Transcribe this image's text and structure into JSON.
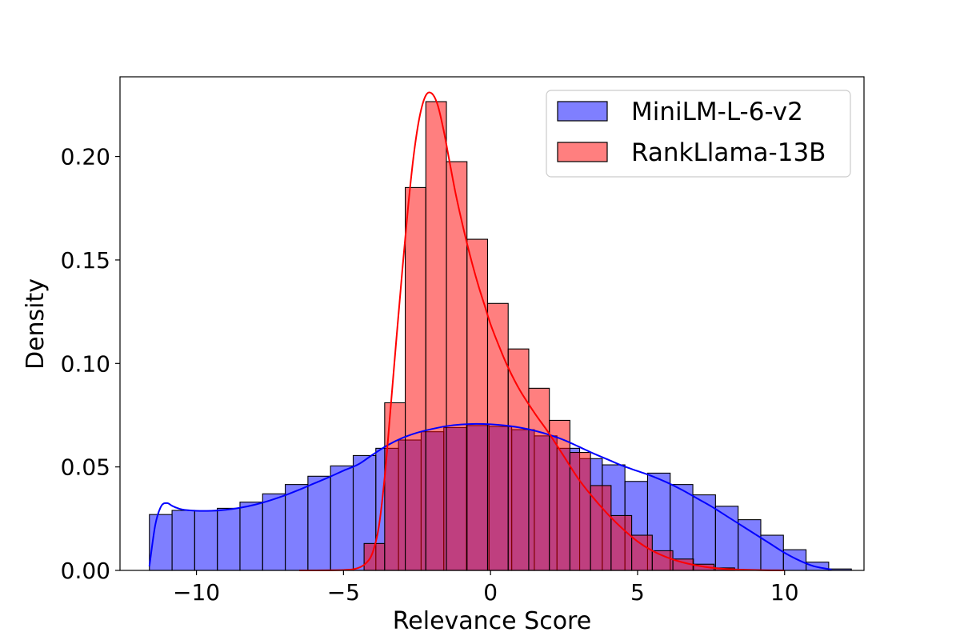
{
  "chart_data": {
    "type": "histogram",
    "xlabel": "Relevance Score",
    "ylabel": "Density",
    "xlim": [
      -12.6,
      12.7
    ],
    "ylim": [
      0,
      0.2385
    ],
    "xticks": [
      -10,
      -5,
      0,
      5,
      10
    ],
    "xtick_labels": [
      "−10",
      "−5",
      "0",
      "5",
      "10"
    ],
    "yticks": [
      0,
      0.05,
      0.1,
      0.15,
      0.2
    ],
    "ytick_labels": [
      "0.00",
      "0.05",
      "0.10",
      "0.15",
      "0.20"
    ],
    "grid": false,
    "legend_position": "top-right",
    "series": [
      {
        "name": "MiniLM-L-6-v2",
        "color": "#0000ff",
        "fill": "#8080ff",
        "bin_start": -11.6,
        "bin_width": 0.77,
        "values": [
          0.027,
          0.029,
          0.0288,
          0.03,
          0.033,
          0.037,
          0.0415,
          0.0455,
          0.0505,
          0.0555,
          0.059,
          0.063,
          0.067,
          0.069,
          0.07,
          0.0695,
          0.068,
          0.065,
          0.059,
          0.054,
          0.051,
          0.043,
          0.047,
          0.0415,
          0.0365,
          0.031,
          0.0245,
          0.017,
          0.01,
          0.004,
          0.0007
        ],
        "kde": [
          [
            -11.6,
            0.002
          ],
          [
            -11.4,
            0.022
          ],
          [
            -11.2,
            0.031
          ],
          [
            -11.0,
            0.0325
          ],
          [
            -10.8,
            0.031
          ],
          [
            -10.5,
            0.0295
          ],
          [
            -10.0,
            0.0288
          ],
          [
            -9.5,
            0.0288
          ],
          [
            -9.0,
            0.0293
          ],
          [
            -8.5,
            0.0303
          ],
          [
            -8.0,
            0.0318
          ],
          [
            -7.5,
            0.0338
          ],
          [
            -7.0,
            0.0362
          ],
          [
            -6.5,
            0.039
          ],
          [
            -6.0,
            0.042
          ],
          [
            -5.5,
            0.045
          ],
          [
            -5.0,
            0.0482
          ],
          [
            -4.5,
            0.0512
          ],
          [
            -4.0,
            0.056
          ],
          [
            -3.5,
            0.0605
          ],
          [
            -3.0,
            0.064
          ],
          [
            -2.5,
            0.0665
          ],
          [
            -2.0,
            0.0683
          ],
          [
            -1.5,
            0.0697
          ],
          [
            -1.0,
            0.0705
          ],
          [
            -0.5,
            0.0708
          ],
          [
            0.0,
            0.0706
          ],
          [
            0.5,
            0.07
          ],
          [
            1.0,
            0.069
          ],
          [
            1.5,
            0.0675
          ],
          [
            2.0,
            0.0655
          ],
          [
            2.5,
            0.063
          ],
          [
            3.0,
            0.0598
          ],
          [
            3.5,
            0.0565
          ],
          [
            4.0,
            0.0535
          ],
          [
            4.5,
            0.0505
          ],
          [
            5.0,
            0.048
          ],
          [
            5.5,
            0.0455
          ],
          [
            6.0,
            0.0425
          ],
          [
            6.5,
            0.039
          ],
          [
            7.0,
            0.035
          ],
          [
            7.5,
            0.031
          ],
          [
            8.0,
            0.0265
          ],
          [
            8.5,
            0.022
          ],
          [
            9.0,
            0.0175
          ],
          [
            9.5,
            0.013
          ],
          [
            10.0,
            0.0085
          ],
          [
            10.5,
            0.0048
          ],
          [
            11.0,
            0.002
          ],
          [
            11.6,
            0.0004
          ]
        ]
      },
      {
        "name": "RankLlama-13B",
        "color": "#ff0000",
        "fill": "#ff8080",
        "bin_start": -4.3,
        "bin_width": 0.7,
        "values": [
          0.013,
          0.081,
          0.185,
          0.2265,
          0.1975,
          0.16,
          0.129,
          0.107,
          0.088,
          0.0725,
          0.057,
          0.041,
          0.0265,
          0.017,
          0.0095,
          0.0055,
          0.003,
          0.0012
        ],
        "kde": [
          [
            -6.5,
            0.0
          ],
          [
            -5.0,
            0.0002
          ],
          [
            -4.5,
            0.0012
          ],
          [
            -4.2,
            0.004
          ],
          [
            -4.0,
            0.009
          ],
          [
            -3.8,
            0.021
          ],
          [
            -3.6,
            0.045
          ],
          [
            -3.4,
            0.078
          ],
          [
            -3.2,
            0.112
          ],
          [
            -3.0,
            0.145
          ],
          [
            -2.8,
            0.176
          ],
          [
            -2.6,
            0.202
          ],
          [
            -2.4,
            0.22
          ],
          [
            -2.2,
            0.2295
          ],
          [
            -2.0,
            0.2305
          ],
          [
            -1.8,
            0.225
          ],
          [
            -1.6,
            0.213
          ],
          [
            -1.4,
            0.198
          ],
          [
            -1.2,
            0.183
          ],
          [
            -1.0,
            0.17
          ],
          [
            -0.8,
            0.158
          ],
          [
            -0.6,
            0.147
          ],
          [
            -0.4,
            0.137
          ],
          [
            -0.2,
            0.128
          ],
          [
            0.0,
            0.119
          ],
          [
            0.3,
            0.108
          ],
          [
            0.6,
            0.098
          ],
          [
            1.0,
            0.087
          ],
          [
            1.5,
            0.076
          ],
          [
            2.0,
            0.066
          ],
          [
            2.5,
            0.055
          ],
          [
            3.0,
            0.044
          ],
          [
            3.5,
            0.035
          ],
          [
            4.0,
            0.027
          ],
          [
            4.5,
            0.02
          ],
          [
            5.0,
            0.014
          ],
          [
            5.5,
            0.0095
          ],
          [
            6.0,
            0.0063
          ],
          [
            6.5,
            0.004
          ],
          [
            7.0,
            0.0024
          ],
          [
            7.5,
            0.0013
          ],
          [
            8.0,
            0.0007
          ],
          [
            9.0,
            0.0002
          ],
          [
            10.0,
            0.0
          ]
        ]
      }
    ]
  }
}
